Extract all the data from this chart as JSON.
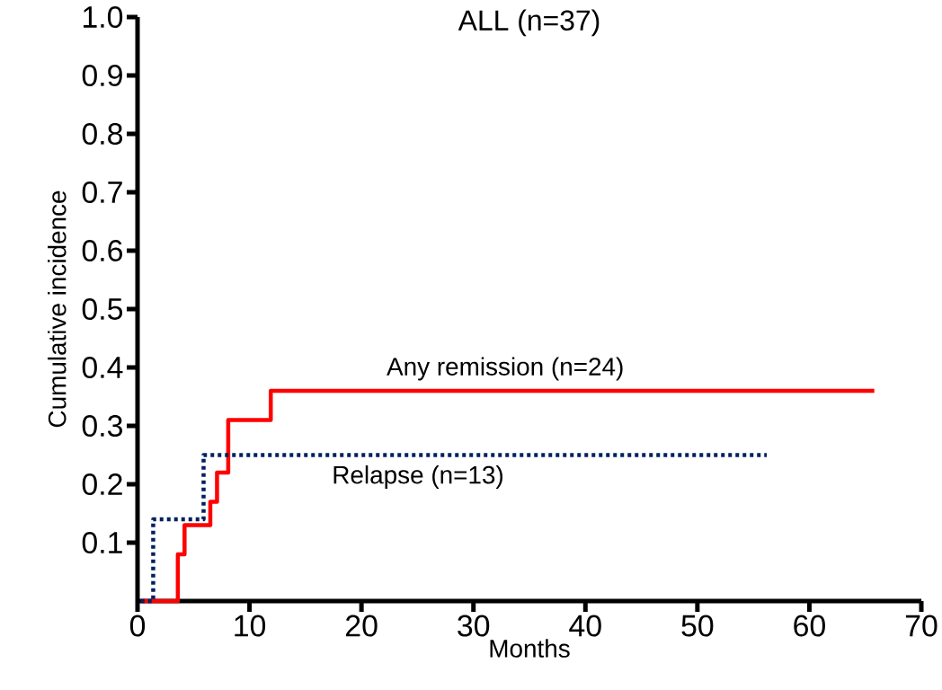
{
  "chart_data": {
    "type": "step",
    "title": "ALL (n=37)",
    "xlabel": "Months",
    "ylabel": "Cumulative incidence",
    "xlim": [
      0,
      70
    ],
    "ylim": [
      0,
      1
    ],
    "xticks": [
      0,
      10,
      20,
      30,
      40,
      50,
      60,
      70
    ],
    "yticks": [
      0.1,
      0.2,
      0.3,
      0.4,
      0.5,
      0.6,
      0.7,
      0.8,
      0.9,
      {
        "value": 1,
        "label": "1.0"
      }
    ],
    "grid": false,
    "series": [
      {
        "name": "Any remission (n=24)",
        "color": "#ff0000",
        "line_style": "solid",
        "x": [
          0.3,
          3.6,
          4.2,
          6.5,
          7.1,
          8.1,
          11.9,
          65.8
        ],
        "values": [
          0,
          0.08,
          0.13,
          0.17,
          0.22,
          0.31,
          0.36,
          0.36
        ]
      },
      {
        "name": "Relapse (n=13)",
        "color": "#002060",
        "line_style": "dotted",
        "x": [
          0.3,
          1.4,
          5.9,
          56.2
        ],
        "values": [
          0,
          0.14,
          0.25,
          0.25
        ]
      }
    ]
  }
}
